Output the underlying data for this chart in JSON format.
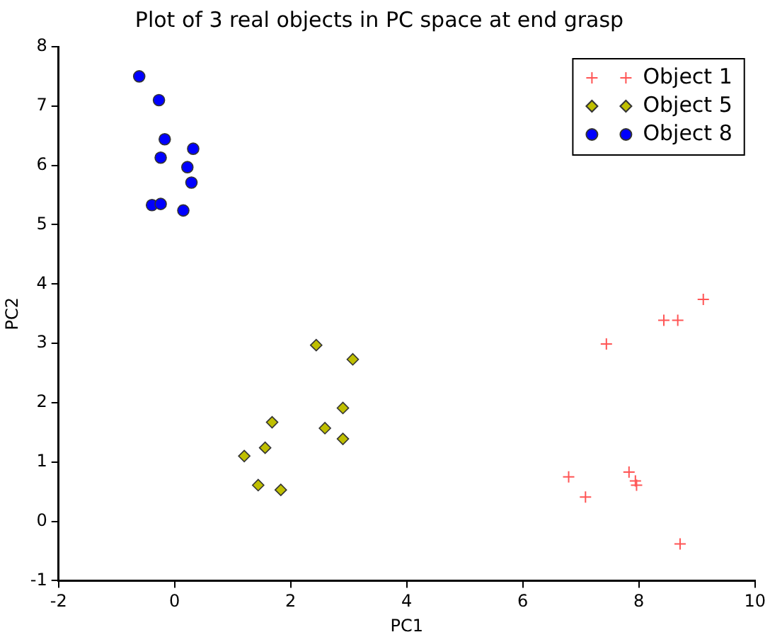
{
  "chart_data": {
    "type": "scatter",
    "title": "Plot of 3 real objects in PC space at end grasp",
    "xlabel": "PC1",
    "ylabel": "PC2",
    "xlim": [
      -2,
      10
    ],
    "xticks": [
      -2,
      0,
      2,
      4,
      6,
      8,
      10
    ],
    "ylim": [
      -1,
      8
    ],
    "yticks": [
      -1,
      0,
      1,
      2,
      3,
      4,
      5,
      6,
      7,
      8
    ],
    "grid": false,
    "legend": "top right",
    "series": [
      {
        "name": "Object 1",
        "color": "#ff5555",
        "marker": "cross",
        "x": [
          9.11,
          8.43,
          8.67,
          7.44,
          6.79,
          7.08,
          7.83,
          7.94,
          7.96,
          8.71
        ],
        "values": [
          3.74,
          3.39,
          3.39,
          2.99,
          0.75,
          0.41,
          0.83,
          0.68,
          0.61,
          -0.38
        ]
      },
      {
        "name": "Object 5",
        "color": "#bfbf00",
        "marker": "diamond",
        "x": [
          2.44,
          3.07,
          1.68,
          2.9,
          2.59,
          2.9,
          1.56,
          1.2,
          1.44,
          1.83
        ],
        "values": [
          2.97,
          2.73,
          1.67,
          1.91,
          1.57,
          1.39,
          1.24,
          1.1,
          0.61,
          0.53
        ]
      },
      {
        "name": "Object 8",
        "color": "#0000ff",
        "marker": "circle",
        "x": [
          -0.61,
          -0.27,
          -0.17,
          0.32,
          -0.24,
          0.22,
          0.29,
          -0.39,
          -0.24,
          0.15
        ],
        "values": [
          7.5,
          7.1,
          6.44,
          6.28,
          6.13,
          5.97,
          5.71,
          5.33,
          5.35,
          5.24
        ]
      }
    ]
  }
}
